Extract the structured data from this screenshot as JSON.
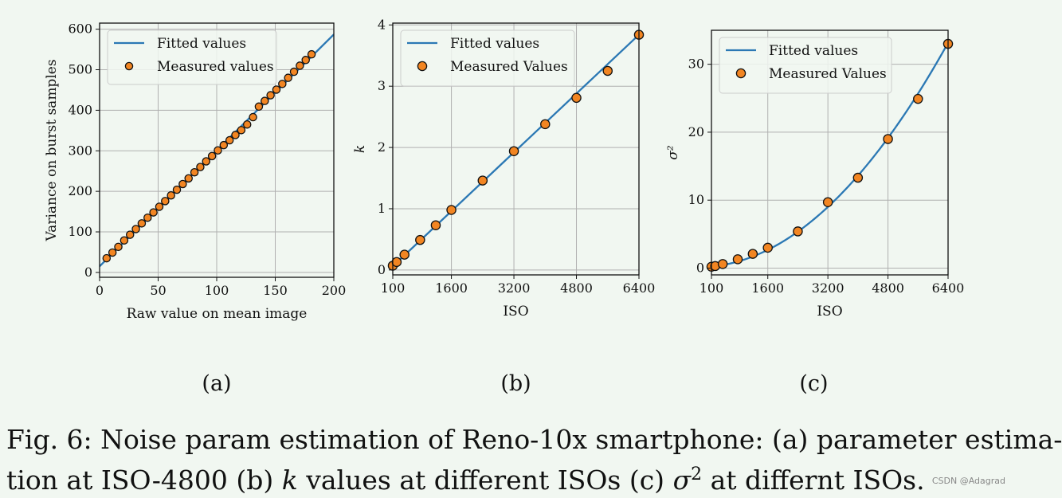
{
  "colors": {
    "line": "#2b78b4",
    "marker": "#f28522",
    "marker_edge": "#111111",
    "grid": "#b0b0b0",
    "background": "#f1f7f1"
  },
  "chart_data": [
    {
      "id": "a",
      "type": "line+scatter",
      "xlabel": "Raw value on mean image",
      "ylabel": "Variance on burst samples",
      "xlim": [
        0,
        200
      ],
      "ylim": [
        -12,
        615
      ],
      "xticks": [
        0,
        50,
        100,
        150,
        200
      ],
      "yticks": [
        0,
        100,
        200,
        300,
        400,
        500,
        600
      ],
      "xtick_labels": [
        "0",
        "50",
        "100",
        "150",
        "200"
      ],
      "ytick_labels": [
        "0",
        "100",
        "200",
        "300",
        "400",
        "500",
        "600"
      ],
      "legend": [
        "Fitted values",
        "Measured values"
      ],
      "legend_position": "upper-left",
      "fitted": {
        "kind": "linear",
        "x": [
          0,
          200
        ],
        "y": [
          15,
          587
        ]
      },
      "measured": {
        "x": [
          6,
          11,
          16,
          21,
          26,
          31,
          36,
          41,
          46,
          51,
          56,
          61,
          66,
          71,
          76,
          81,
          86,
          91,
          96,
          101,
          106,
          111,
          116,
          121,
          126,
          131,
          136,
          141,
          146,
          151,
          156,
          161,
          166,
          171,
          176,
          181
        ],
        "y": [
          35,
          49,
          63,
          79,
          93,
          107,
          121,
          135,
          148,
          162,
          176,
          190,
          204,
          218,
          232,
          247,
          260,
          274,
          287,
          301,
          314,
          326,
          339,
          351,
          365,
          383,
          409,
          423,
          437,
          451,
          465,
          480,
          495,
          510,
          524,
          538
        ]
      },
      "sublabel": "(a)"
    },
    {
      "id": "b",
      "type": "line+scatter",
      "xlabel": "ISO",
      "ylabel": "k",
      "xlim": [
        100,
        6400
      ],
      "ylim": [
        -0.08,
        4.03
      ],
      "xticks": [
        100,
        1600,
        3200,
        4800,
        6400
      ],
      "yticks": [
        0,
        1,
        2,
        3,
        4
      ],
      "xtick_labels": [
        "100",
        "1600",
        "3200",
        "4800",
        "6400"
      ],
      "ytick_labels": [
        "0",
        "1",
        "2",
        "3",
        "4"
      ],
      "legend": [
        "Fitted values",
        "Measured Values"
      ],
      "legend_position": "upper-left",
      "fitted": {
        "kind": "linear",
        "x": [
          100,
          6400
        ],
        "y": [
          0.06,
          3.84
        ]
      },
      "measured": {
        "x": [
          100,
          200,
          400,
          800,
          1200,
          1600,
          2400,
          3200,
          4000,
          4800,
          5600,
          6400
        ],
        "y": [
          0.07,
          0.13,
          0.25,
          0.49,
          0.73,
          0.98,
          1.46,
          1.94,
          2.38,
          2.81,
          3.25,
          3.84
        ]
      },
      "sublabel": "(b)"
    },
    {
      "id": "c",
      "type": "line+scatter",
      "xlabel": "ISO",
      "ylabel": "σ²",
      "xlim": [
        100,
        6400
      ],
      "ylim": [
        -1,
        35
      ],
      "xticks": [
        100,
        1600,
        3200,
        4800,
        6400
      ],
      "yticks": [
        0,
        10,
        20,
        30
      ],
      "xtick_labels": [
        "100",
        "1600",
        "3200",
        "4800",
        "6400"
      ],
      "ytick_labels": [
        "0",
        "10",
        "20",
        "30"
      ],
      "legend": [
        "Fitted values",
        "Measured Values"
      ],
      "legend_position": "upper-left",
      "fitted": {
        "kind": "quadratic",
        "coefficients": [
          0.2,
          0.00035,
          7.5e-07
        ]
      },
      "measured": {
        "x": [
          100,
          200,
          400,
          800,
          1200,
          1600,
          2400,
          3200,
          4000,
          4800,
          5600,
          6400
        ],
        "y": [
          0.2,
          0.3,
          0.6,
          1.3,
          2.1,
          3.0,
          5.4,
          9.7,
          13.3,
          19.0,
          24.9,
          33.0
        ]
      },
      "sublabel": "(c)"
    }
  ],
  "caption": {
    "prefix": "Fig. 6: Noise param estimation of Reno-10x smartphone: (a) parameter estima-",
    "line2_a": "tion at ISO-4800 (b) ",
    "k": "k",
    "line2_b": " values at different ISOs (c) ",
    "sigma": "σ",
    "sup": "2",
    "line2_c": " at differnt ISOs."
  },
  "watermark": "CSDN @Adagrad"
}
